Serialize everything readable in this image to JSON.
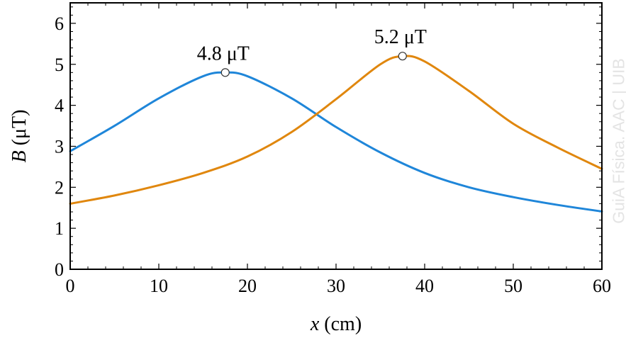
{
  "chart_data": {
    "type": "line",
    "xlabel_var": "x",
    "xlabel_unit": "(cm)",
    "ylabel_var": "B",
    "ylabel_unit": "(μT)",
    "xlim": [
      0,
      60
    ],
    "ylim": [
      0,
      6.5
    ],
    "xticks": [
      0,
      10,
      20,
      30,
      40,
      50,
      60
    ],
    "yticks": [
      0,
      1,
      2,
      3,
      4,
      5,
      6
    ],
    "grid": false,
    "series": [
      {
        "color": "#1f86d9",
        "x": [
          0,
          5,
          10,
          15,
          17.5,
          20,
          25,
          30,
          35,
          40,
          45,
          50,
          55,
          60
        ],
        "y": [
          2.88,
          3.5,
          4.17,
          4.71,
          4.8,
          4.71,
          4.17,
          3.47,
          2.85,
          2.35,
          2.0,
          1.76,
          1.57,
          1.41
        ]
      },
      {
        "color": "#e0870e",
        "x": [
          0,
          5,
          10,
          15,
          20,
          25,
          30,
          35,
          37.5,
          40,
          45,
          50,
          55,
          60
        ],
        "y": [
          1.6,
          1.8,
          2.05,
          2.35,
          2.75,
          3.35,
          4.15,
          5.0,
          5.2,
          5.07,
          4.35,
          3.55,
          2.97,
          2.45
        ]
      }
    ],
    "annotations": [
      {
        "text": "4.8 μT",
        "x": 17.5,
        "y": 4.8
      },
      {
        "text": "5.2 μT",
        "x": 37.5,
        "y": 5.2
      }
    ]
  },
  "watermark": "GuiA Física. AAC | UIB"
}
